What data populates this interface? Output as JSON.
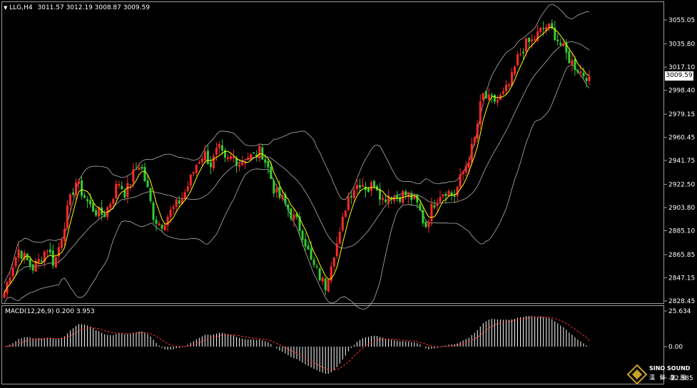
{
  "header": {
    "symbol": "LLG,H4",
    "ohlc": "3011.57 3012.19 3008.87 3009.59"
  },
  "macd_header": "MACD(12,26,9) 0.200 3.953",
  "current_price_label": "3009.59",
  "logo": {
    "brand": "SINO SOUND",
    "sub": "漢 聲 集 團"
  },
  "colors": {
    "up": "#ff2a2a",
    "down": "#33cc33",
    "ma": "#ffff00",
    "band": "#b0b0b0",
    "signal": "#ff3030",
    "hist": "#ffffff"
  },
  "chart_data": [
    {
      "type": "candlestick",
      "timeframe": "H4",
      "yticks": [
        "3055.05",
        "3035.80",
        "3017.10",
        "2998.40",
        "2979.15",
        "2960.45",
        "2941.75",
        "2922.50",
        "2903.80",
        "2885.10",
        "2865.85",
        "2847.15",
        "2828.45"
      ],
      "ylim": [
        2828.45,
        3055.05
      ],
      "close_path": [
        2835,
        2855,
        2870,
        2862,
        2855,
        2862,
        2872,
        2858,
        2880,
        2905,
        2925,
        2915,
        2905,
        2900,
        2898,
        2910,
        2925,
        2915,
        2930,
        2940,
        2920,
        2895,
        2890,
        2898,
        2905,
        2912,
        2925,
        2940,
        2948,
        2938,
        2952,
        2940,
        2945,
        2940,
        2945,
        2945,
        2950,
        2935,
        2915,
        2910,
        2900,
        2892,
        2880,
        2860,
        2850,
        2840,
        2865,
        2880,
        2910,
        2920,
        2925,
        2918,
        2925,
        2910,
        2915,
        2912,
        2915,
        2912,
        2905,
        2888,
        2905,
        2915,
        2918,
        2912,
        2928,
        2942,
        2960,
        2995,
        2990,
        2990,
        2995,
        3005,
        3025,
        3035,
        3038,
        3045,
        3050,
        3045,
        3035,
        3025,
        3018,
        3012,
        3009.59
      ],
      "current_price": 3009.59
    },
    {
      "type": "macd",
      "params": "MACD(12,26,9)",
      "macd": 0.2,
      "signal": 3.953,
      "yticks": [
        "25.634",
        "0.00",
        "-22.585"
      ],
      "ylim": [
        -22.585,
        25.634
      ]
    }
  ]
}
